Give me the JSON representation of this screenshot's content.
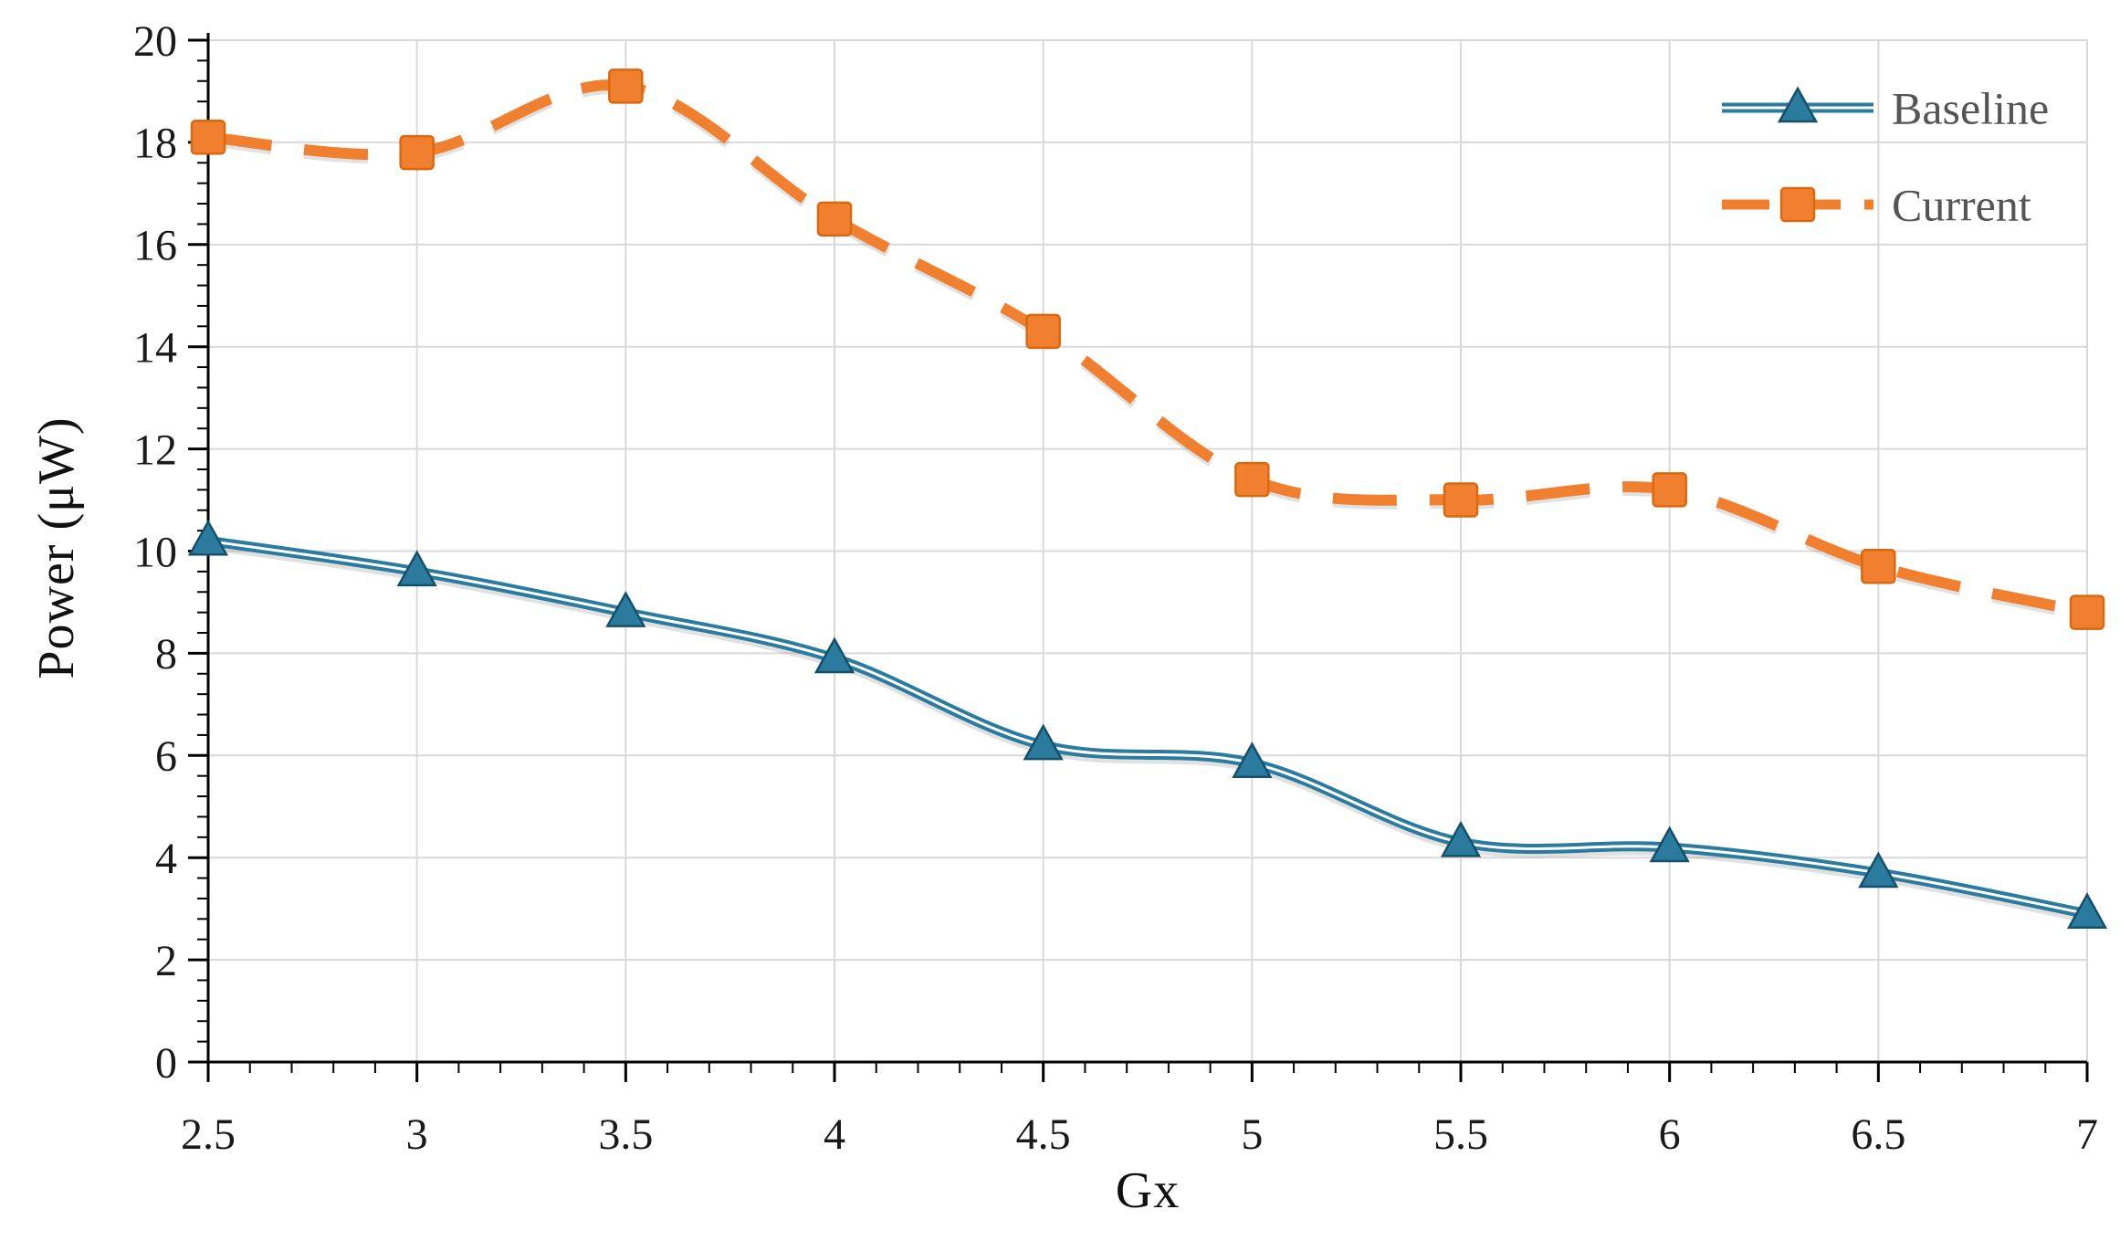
{
  "chart_data": {
    "type": "line",
    "title": "",
    "xlabel": "Gx",
    "ylabel": "Power (μW)",
    "x": [
      2.5,
      3,
      3.5,
      4,
      4.5,
      5,
      5.5,
      6,
      6.5,
      7
    ],
    "series": [
      {
        "name": "Baseline",
        "marker": "triangle",
        "dashed": false,
        "color": "#2A7B9D",
        "edge": "#14506A",
        "core": "#FFFFFF",
        "values": [
          10.2,
          9.6,
          8.8,
          7.9,
          6.2,
          5.85,
          4.3,
          4.2,
          3.7,
          2.9
        ]
      },
      {
        "name": "Current",
        "marker": "square",
        "dashed": true,
        "color": "#F0802F",
        "edge": "#D9680F",
        "core": "",
        "values": [
          18.1,
          17.8,
          19.1,
          16.5,
          14.3,
          11.4,
          11.0,
          11.2,
          9.7,
          8.8
        ]
      }
    ],
    "xlim": [
      2.5,
      7
    ],
    "ylim": [
      0,
      20
    ],
    "xticks": [
      2.5,
      3,
      3.5,
      4,
      4.5,
      5,
      5.5,
      6,
      6.5,
      7
    ],
    "xtick_labels": [
      "2.5",
      "3",
      "3.5",
      "4",
      "4.5",
      "5",
      "5.5",
      "6",
      "6.5",
      "7"
    ],
    "yticks": [
      0,
      2,
      4,
      6,
      8,
      10,
      12,
      14,
      16,
      18,
      20
    ],
    "ytick_labels": [
      "0",
      "2",
      "4",
      "6",
      "8",
      "10",
      "12",
      "14",
      "16",
      "18",
      "20"
    ],
    "grid": true,
    "legend_position": "top-right",
    "legend": [
      "Baseline",
      "Current"
    ],
    "colors": {
      "grid": "#D9D9D9",
      "axis": "#000000",
      "tick_label": "#1A1A1A",
      "legend_text": "#555555",
      "shadow": "#9A9A9A"
    }
  }
}
